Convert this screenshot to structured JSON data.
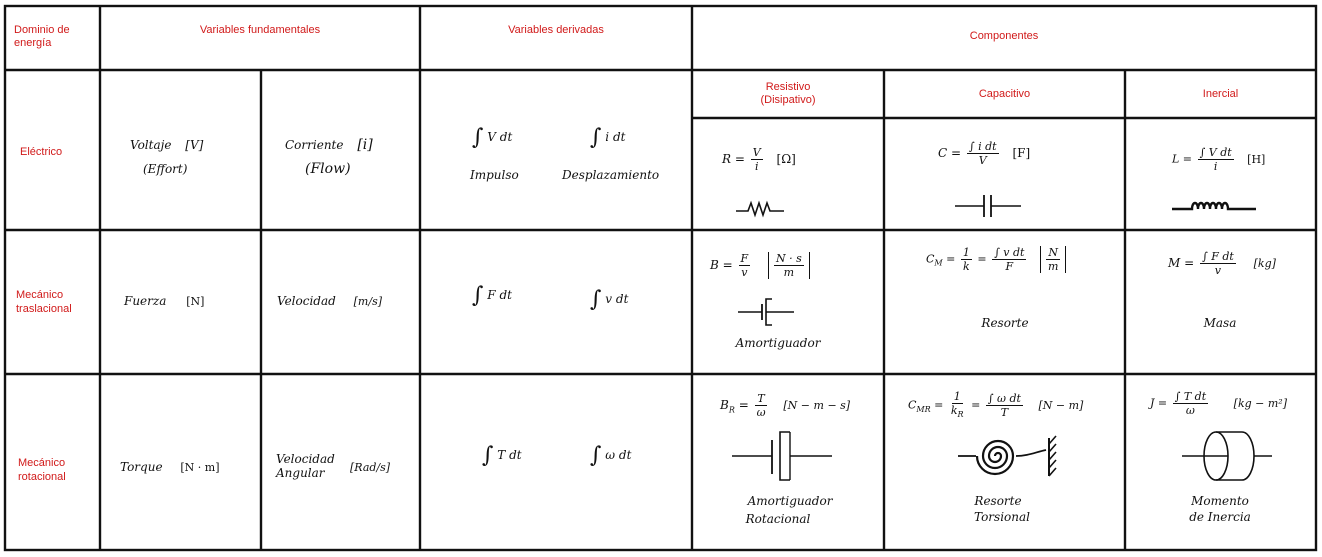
{
  "headers": {
    "domain": "Dominio de energía",
    "fundamental": "Variables fundamentales",
    "derived": "Variables derivadas",
    "components": "Componentes",
    "resistive": "Resistivo (Disipativo)",
    "capacitive": "Capacitivo",
    "inertial": "Inercial"
  },
  "rows": {
    "electric": {
      "label": "Eléctrico",
      "effort_name": "Voltaje",
      "effort_unit": "[V]",
      "effort_type": "(Effort)",
      "flow_name": "Corriente",
      "flow_unit": "[i]",
      "flow_type": "(Flow)",
      "d1_integrand": "V dt",
      "d1_name": "Impulso",
      "d2_integrand": "i dt",
      "d2_name": "Desplazamiento",
      "res_lhs": "R =",
      "res_num": "V",
      "res_den": "i",
      "res_unit": "[Ω]",
      "cap_lhs": "C =",
      "cap_num": "∫ i dt",
      "cap_den": "V",
      "cap_unit": "[F]",
      "ind_lhs": "L =",
      "ind_num": "∫ V dt",
      "ind_den": "i",
      "ind_unit": "[H]"
    },
    "translational": {
      "label": "Mecánico traslacional",
      "effort_name": "Fuerza",
      "effort_unit": "[N]",
      "flow_name": "Velocidad",
      "flow_unit": "[m/s]",
      "d1_integrand": "F dt",
      "d2_integrand": "v dt",
      "res_lhs": "B =",
      "res_num": "F",
      "res_den": "v",
      "res_unit_num": "N · s",
      "res_unit_den": "m",
      "res_caption": "Amortiguador",
      "cap_lhs": "C",
      "cap_sub": "M",
      "cap_eq": "=",
      "cap_num1": "1",
      "cap_den1": "k",
      "cap_eq2": "=",
      "cap_num2": "∫ v dt",
      "cap_den2": "F",
      "cap_unit_num": "N",
      "cap_unit_den": "m",
      "cap_caption": "Resorte",
      "ind_lhs": "M =",
      "ind_num": "∫ F dt",
      "ind_den": "v",
      "ind_unit": "[kg]",
      "ind_caption": "Masa"
    },
    "rotational": {
      "label": "Mecánico rotacional",
      "effort_name": "Torque",
      "effort_unit": "[N · m]",
      "flow_name": "Velocidad Angular",
      "flow_name_1": "Velocidad",
      "flow_name_2": "Angular",
      "flow_unit": "[Rad/s]",
      "d1_integrand": "T dt",
      "d2_integrand": "ω dt",
      "res_lhs": "B",
      "res_sub": "R",
      "res_eq": "=",
      "res_num": "T",
      "res_den": "ω",
      "res_unit": "[N − m − s]",
      "res_caption_1": "Amortiguador",
      "res_caption_2": "Rotacional",
      "cap_lhs": "C",
      "cap_sub": "MR",
      "cap_eq": "=",
      "cap_num1": "1",
      "cap_den1": "k",
      "cap_den1_sub": "R",
      "cap_eq2": "=",
      "cap_num2": "∫ ω dt",
      "cap_den2": "T",
      "cap_unit": "[N − m]",
      "cap_caption_1": "Resorte",
      "cap_caption_2": "Torsional",
      "ind_lhs": "J =",
      "ind_num": "∫ T dt",
      "ind_den": "ω",
      "ind_unit": "[kg − m²]",
      "ind_caption_1": "Momento",
      "ind_caption_2": "de Inercia"
    }
  },
  "colors": {
    "accent": "#d11a1a",
    "ink": "#111111",
    "background": "#ffffff"
  },
  "icons": [
    "resistor-icon",
    "capacitor-icon",
    "inductor-icon",
    "damper-icon",
    "rotational-damper-icon",
    "torsional-spring-icon",
    "flywheel-icon"
  ]
}
